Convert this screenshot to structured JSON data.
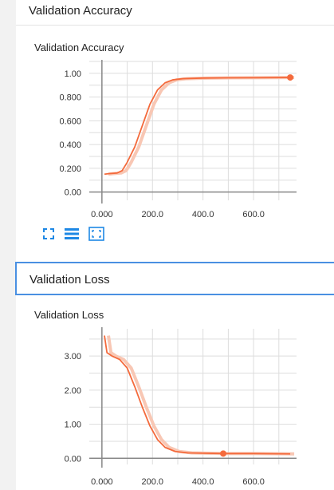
{
  "sections": [
    {
      "header": "Validation Accuracy",
      "card_title": "Validation Accuracy"
    },
    {
      "header": "Validation Loss",
      "card_title": "Validation Loss"
    }
  ],
  "toolbar": {
    "icons": [
      "fullscreen-icon",
      "data-table-icon",
      "fit-domain-icon"
    ],
    "color": "#1e88e5"
  },
  "colors": {
    "series": "#f46a3c",
    "series_raw": "#f8c7b4",
    "grid": "#dddddd",
    "axis": "#888888"
  },
  "chart_data": [
    {
      "type": "line",
      "title": "Validation Accuracy",
      "xlim": [
        -50,
        770
      ],
      "ylim": [
        -0.07,
        1.1
      ],
      "xticks": [
        0,
        200,
        400,
        600
      ],
      "xtick_labels": [
        "0.000",
        "200.0",
        "400.0",
        "600.0"
      ],
      "yticks": [
        0,
        0.2,
        0.4,
        0.6,
        0.8,
        1.0
      ],
      "ytick_labels": [
        "0.00",
        "0.200",
        "0.400",
        "0.600",
        "0.800",
        "1.00"
      ],
      "grid": true,
      "series": [
        {
          "x": [
            10,
            30,
            60,
            80,
            100,
            130,
            160,
            190,
            220,
            250,
            280,
            320,
            400,
            500,
            600,
            745
          ],
          "y": [
            0.15,
            0.155,
            0.16,
            0.18,
            0.25,
            0.38,
            0.56,
            0.74,
            0.86,
            0.92,
            0.945,
            0.955,
            0.96,
            0.962,
            0.963,
            0.965
          ]
        }
      ],
      "highlight_point": {
        "x": 745,
        "y": 0.965
      }
    },
    {
      "type": "line",
      "title": "Validation Loss",
      "xlim": [
        -50,
        770
      ],
      "ylim": [
        -0.18,
        3.8
      ],
      "xticks": [
        0,
        200,
        400,
        600
      ],
      "xtick_labels": [
        "0.000",
        "200.0",
        "400.0",
        "600.0"
      ],
      "yticks": [
        0,
        1,
        2,
        3
      ],
      "ytick_labels": [
        "0.00",
        "1.00",
        "2.00",
        "3.00"
      ],
      "grid": true,
      "series": [
        {
          "x": [
            10,
            20,
            40,
            70,
            100,
            130,
            160,
            190,
            220,
            250,
            290,
            340,
            400,
            480,
            600,
            745
          ],
          "y": [
            3.6,
            3.1,
            3.0,
            2.9,
            2.65,
            2.1,
            1.5,
            0.95,
            0.55,
            0.32,
            0.2,
            0.16,
            0.15,
            0.14,
            0.14,
            0.13
          ]
        }
      ],
      "highlight_point": {
        "x": 480,
        "y": 0.14
      }
    }
  ]
}
